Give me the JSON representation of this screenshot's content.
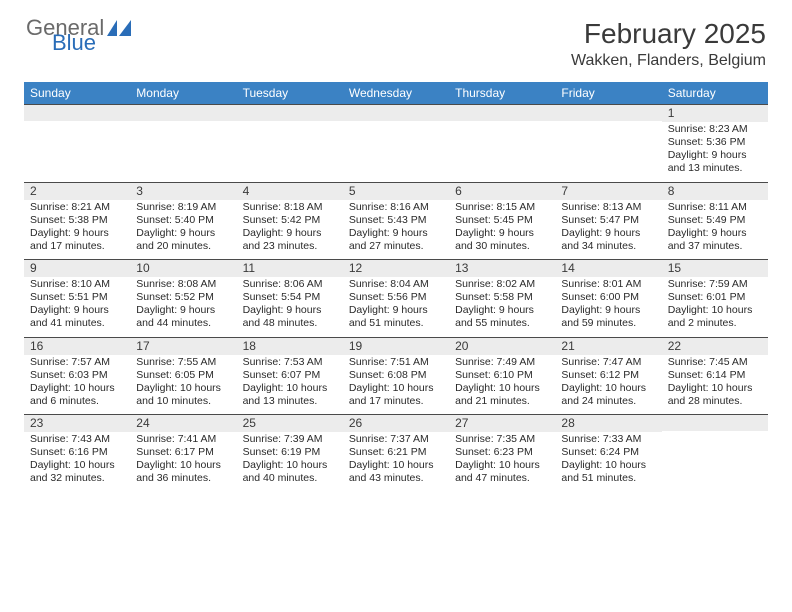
{
  "brand": {
    "general": "General",
    "blue": "Blue"
  },
  "colors": {
    "header_bar": "#3b82c4",
    "daynum_bg": "#ececec",
    "row_border": "#4a4a4a",
    "text": "#2a2a2a",
    "logo_gray": "#6a6a6a",
    "logo_blue": "#2a6db8"
  },
  "title": "February 2025",
  "location": "Wakken, Flanders, Belgium",
  "weekdays": [
    "Sunday",
    "Monday",
    "Tuesday",
    "Wednesday",
    "Thursday",
    "Friday",
    "Saturday"
  ],
  "weeks": [
    [
      {
        "n": "",
        "sunrise": "",
        "sunset": "",
        "daylight": ""
      },
      {
        "n": "",
        "sunrise": "",
        "sunset": "",
        "daylight": ""
      },
      {
        "n": "",
        "sunrise": "",
        "sunset": "",
        "daylight": ""
      },
      {
        "n": "",
        "sunrise": "",
        "sunset": "",
        "daylight": ""
      },
      {
        "n": "",
        "sunrise": "",
        "sunset": "",
        "daylight": ""
      },
      {
        "n": "",
        "sunrise": "",
        "sunset": "",
        "daylight": ""
      },
      {
        "n": "1",
        "sunrise": "Sunrise: 8:23 AM",
        "sunset": "Sunset: 5:36 PM",
        "daylight": "Daylight: 9 hours and 13 minutes."
      }
    ],
    [
      {
        "n": "2",
        "sunrise": "Sunrise: 8:21 AM",
        "sunset": "Sunset: 5:38 PM",
        "daylight": "Daylight: 9 hours and 17 minutes."
      },
      {
        "n": "3",
        "sunrise": "Sunrise: 8:19 AM",
        "sunset": "Sunset: 5:40 PM",
        "daylight": "Daylight: 9 hours and 20 minutes."
      },
      {
        "n": "4",
        "sunrise": "Sunrise: 8:18 AM",
        "sunset": "Sunset: 5:42 PM",
        "daylight": "Daylight: 9 hours and 23 minutes."
      },
      {
        "n": "5",
        "sunrise": "Sunrise: 8:16 AM",
        "sunset": "Sunset: 5:43 PM",
        "daylight": "Daylight: 9 hours and 27 minutes."
      },
      {
        "n": "6",
        "sunrise": "Sunrise: 8:15 AM",
        "sunset": "Sunset: 5:45 PM",
        "daylight": "Daylight: 9 hours and 30 minutes."
      },
      {
        "n": "7",
        "sunrise": "Sunrise: 8:13 AM",
        "sunset": "Sunset: 5:47 PM",
        "daylight": "Daylight: 9 hours and 34 minutes."
      },
      {
        "n": "8",
        "sunrise": "Sunrise: 8:11 AM",
        "sunset": "Sunset: 5:49 PM",
        "daylight": "Daylight: 9 hours and 37 minutes."
      }
    ],
    [
      {
        "n": "9",
        "sunrise": "Sunrise: 8:10 AM",
        "sunset": "Sunset: 5:51 PM",
        "daylight": "Daylight: 9 hours and 41 minutes."
      },
      {
        "n": "10",
        "sunrise": "Sunrise: 8:08 AM",
        "sunset": "Sunset: 5:52 PM",
        "daylight": "Daylight: 9 hours and 44 minutes."
      },
      {
        "n": "11",
        "sunrise": "Sunrise: 8:06 AM",
        "sunset": "Sunset: 5:54 PM",
        "daylight": "Daylight: 9 hours and 48 minutes."
      },
      {
        "n": "12",
        "sunrise": "Sunrise: 8:04 AM",
        "sunset": "Sunset: 5:56 PM",
        "daylight": "Daylight: 9 hours and 51 minutes."
      },
      {
        "n": "13",
        "sunrise": "Sunrise: 8:02 AM",
        "sunset": "Sunset: 5:58 PM",
        "daylight": "Daylight: 9 hours and 55 minutes."
      },
      {
        "n": "14",
        "sunrise": "Sunrise: 8:01 AM",
        "sunset": "Sunset: 6:00 PM",
        "daylight": "Daylight: 9 hours and 59 minutes."
      },
      {
        "n": "15",
        "sunrise": "Sunrise: 7:59 AM",
        "sunset": "Sunset: 6:01 PM",
        "daylight": "Daylight: 10 hours and 2 minutes."
      }
    ],
    [
      {
        "n": "16",
        "sunrise": "Sunrise: 7:57 AM",
        "sunset": "Sunset: 6:03 PM",
        "daylight": "Daylight: 10 hours and 6 minutes."
      },
      {
        "n": "17",
        "sunrise": "Sunrise: 7:55 AM",
        "sunset": "Sunset: 6:05 PM",
        "daylight": "Daylight: 10 hours and 10 minutes."
      },
      {
        "n": "18",
        "sunrise": "Sunrise: 7:53 AM",
        "sunset": "Sunset: 6:07 PM",
        "daylight": "Daylight: 10 hours and 13 minutes."
      },
      {
        "n": "19",
        "sunrise": "Sunrise: 7:51 AM",
        "sunset": "Sunset: 6:08 PM",
        "daylight": "Daylight: 10 hours and 17 minutes."
      },
      {
        "n": "20",
        "sunrise": "Sunrise: 7:49 AM",
        "sunset": "Sunset: 6:10 PM",
        "daylight": "Daylight: 10 hours and 21 minutes."
      },
      {
        "n": "21",
        "sunrise": "Sunrise: 7:47 AM",
        "sunset": "Sunset: 6:12 PM",
        "daylight": "Daylight: 10 hours and 24 minutes."
      },
      {
        "n": "22",
        "sunrise": "Sunrise: 7:45 AM",
        "sunset": "Sunset: 6:14 PM",
        "daylight": "Daylight: 10 hours and 28 minutes."
      }
    ],
    [
      {
        "n": "23",
        "sunrise": "Sunrise: 7:43 AM",
        "sunset": "Sunset: 6:16 PM",
        "daylight": "Daylight: 10 hours and 32 minutes."
      },
      {
        "n": "24",
        "sunrise": "Sunrise: 7:41 AM",
        "sunset": "Sunset: 6:17 PM",
        "daylight": "Daylight: 10 hours and 36 minutes."
      },
      {
        "n": "25",
        "sunrise": "Sunrise: 7:39 AM",
        "sunset": "Sunset: 6:19 PM",
        "daylight": "Daylight: 10 hours and 40 minutes."
      },
      {
        "n": "26",
        "sunrise": "Sunrise: 7:37 AM",
        "sunset": "Sunset: 6:21 PM",
        "daylight": "Daylight: 10 hours and 43 minutes."
      },
      {
        "n": "27",
        "sunrise": "Sunrise: 7:35 AM",
        "sunset": "Sunset: 6:23 PM",
        "daylight": "Daylight: 10 hours and 47 minutes."
      },
      {
        "n": "28",
        "sunrise": "Sunrise: 7:33 AM",
        "sunset": "Sunset: 6:24 PM",
        "daylight": "Daylight: 10 hours and 51 minutes."
      },
      {
        "n": "",
        "sunrise": "",
        "sunset": "",
        "daylight": ""
      }
    ]
  ]
}
